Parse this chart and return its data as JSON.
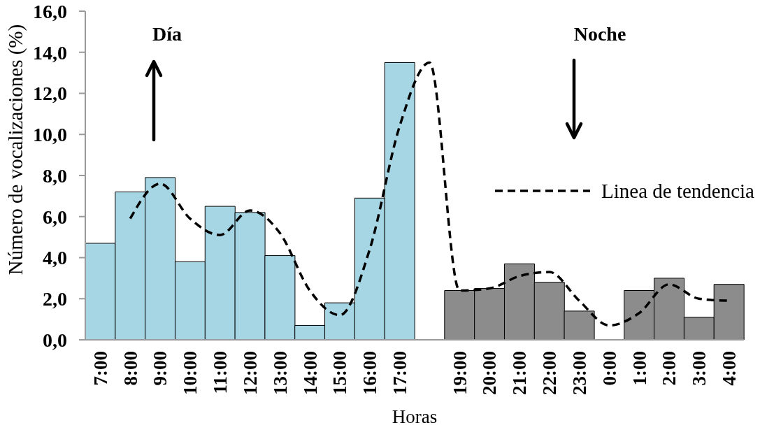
{
  "chart_data": {
    "type": "bar",
    "xlabel": "Horas",
    "ylabel": "Número de vocalizaciones (%)",
    "annotations": [
      "Día",
      "Noche"
    ],
    "categories": [
      "7:00",
      "8:00",
      "9:00",
      "10:00",
      "11:00",
      "12:00",
      "13:00",
      "14:00",
      "15:00",
      "16:00",
      "17:00",
      null,
      "19:00",
      "20:00",
      "21:00",
      "22:00",
      "23:00",
      "0:00",
      "1:00",
      "2:00",
      "3:00",
      "4:00"
    ],
    "series": [
      {
        "type": "bar",
        "colors": [
          "#a6d6e4",
          "#a6d6e4",
          "#a6d6e4",
          "#a6d6e4",
          "#a6d6e4",
          "#a6d6e4",
          "#a6d6e4",
          "#a6d6e4",
          "#a6d6e4",
          "#a6d6e4",
          "#a6d6e4",
          "#8c8c8c",
          "#8c8c8c",
          "#8c8c8c",
          "#8c8c8c",
          "#8c8c8c",
          "#8c8c8c",
          "#8c8c8c",
          "#8c8c8c",
          "#8c8c8c",
          "#8c8c8c",
          "#8c8c8c"
        ],
        "values": [
          4.7,
          7.2,
          7.9,
          3.8,
          6.5,
          6.2,
          4.1,
          0.7,
          1.8,
          6.9,
          13.5,
          null,
          2.4,
          2.5,
          3.7,
          2.8,
          1.4,
          null,
          2.4,
          3.0,
          1.1,
          2.7
        ]
      },
      {
        "type": "line",
        "name": "Linea de tendencia",
        "color": "#000000",
        "line_style": "dashed",
        "values": [
          null,
          5.9,
          7.6,
          5.9,
          5.1,
          6.3,
          5.2,
          2.4,
          1.2,
          4.4,
          10.4,
          13.5,
          2.4,
          2.5,
          3.1,
          3.3,
          1.9,
          0.7,
          1.3,
          2.7,
          2.0,
          1.9
        ]
      }
    ],
    "ylim": [
      0,
      16
    ],
    "yticks": [
      {
        "value": 0,
        "label": "0,0"
      },
      {
        "value": 2,
        "label": "2,0"
      },
      {
        "value": 4,
        "label": "4,0"
      },
      {
        "value": 6,
        "label": "6,0"
      },
      {
        "value": 8,
        "label": "8,0"
      },
      {
        "value": 10,
        "label": "10,0"
      },
      {
        "value": 12,
        "label": "12,0"
      },
      {
        "value": 14,
        "label": "14,0"
      },
      {
        "value": 16,
        "label": "16,0"
      }
    ],
    "legend": "right"
  }
}
